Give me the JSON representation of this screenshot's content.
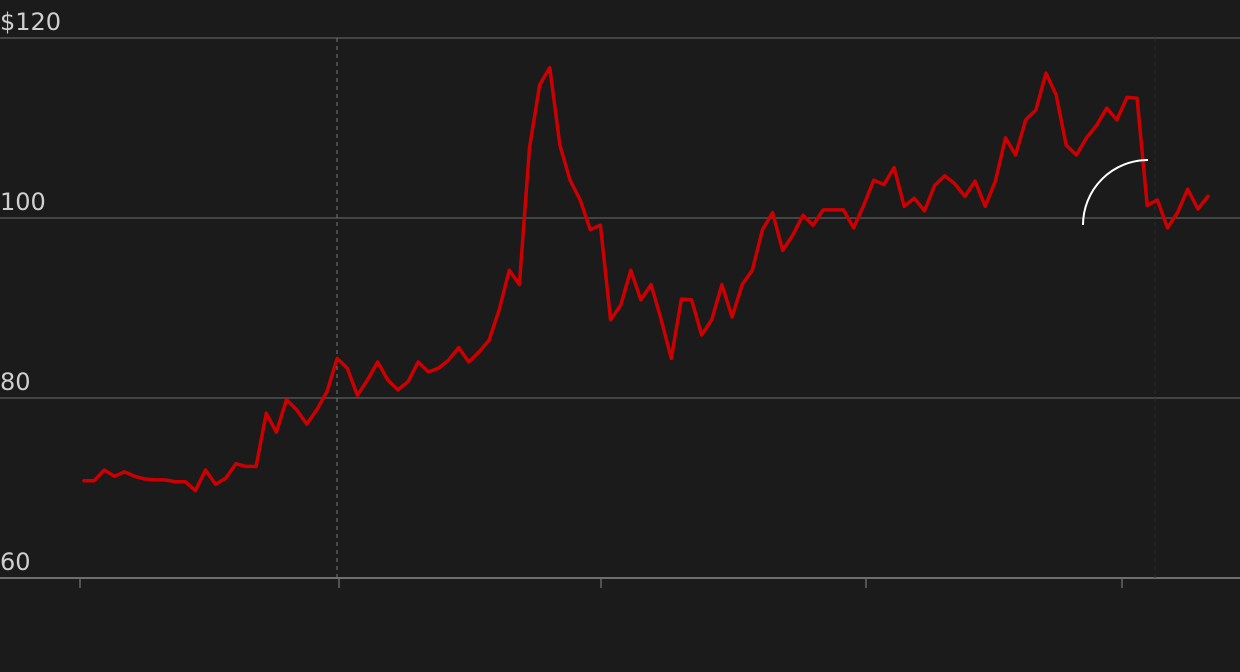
{
  "chart_data": {
    "type": "line",
    "title": "",
    "xlabel": "",
    "ylabel": "",
    "ylim": [
      60,
      120
    ],
    "y_ticks": [
      {
        "value": 120,
        "label": "$120"
      },
      {
        "value": 100,
        "label": "100"
      },
      {
        "value": 80,
        "label": "80"
      },
      {
        "value": 60,
        "label": "60"
      }
    ],
    "x_tick_count": 5,
    "grid": "horizontal",
    "line_color": "#cc0000",
    "series": [
      {
        "values": [
          70.8,
          70.8,
          72,
          71.3,
          71.8,
          71.3,
          71,
          70.9,
          70.9,
          70.7,
          70.7,
          69.7,
          72,
          70.4,
          71.1,
          72.7,
          72.4,
          72.4,
          78.3,
          76.2,
          79.8,
          78.7,
          77.1,
          78.7,
          80.7,
          84.4,
          83.3,
          80.3,
          82,
          84,
          82,
          80.9,
          81.8,
          84,
          82.9,
          83.3,
          84.2,
          85.6,
          84,
          85.1,
          86.4,
          89.8,
          94.2,
          92.6,
          107.8,
          114.8,
          116.7,
          108.1,
          104.2,
          102,
          98.7,
          99.2,
          88.7,
          90.3,
          94.2,
          90.9,
          92.6,
          88.7,
          84.4,
          91,
          90.9,
          87,
          88.7,
          92.6,
          89,
          92.6,
          94.2,
          98.7,
          100.6,
          96.4,
          98.1,
          100.3,
          99.2,
          100.9,
          100.9,
          100.9,
          98.9,
          101.4,
          104.2,
          103.7,
          105.6,
          101.3,
          102.2,
          100.8,
          103.6,
          104.7,
          103.8,
          102.4,
          104.1,
          101.3,
          104.1,
          108.9,
          107,
          110.9,
          112,
          116.1,
          113.7,
          108.1,
          107,
          108.9,
          110.3,
          112.2,
          110.9,
          113.4,
          113.3,
          101.4,
          102,
          98.9,
          100.6,
          103.2,
          101,
          102.4
        ]
      }
    ],
    "annotations": {
      "reference_lines": 2,
      "arc_color": "#ffffff"
    }
  }
}
